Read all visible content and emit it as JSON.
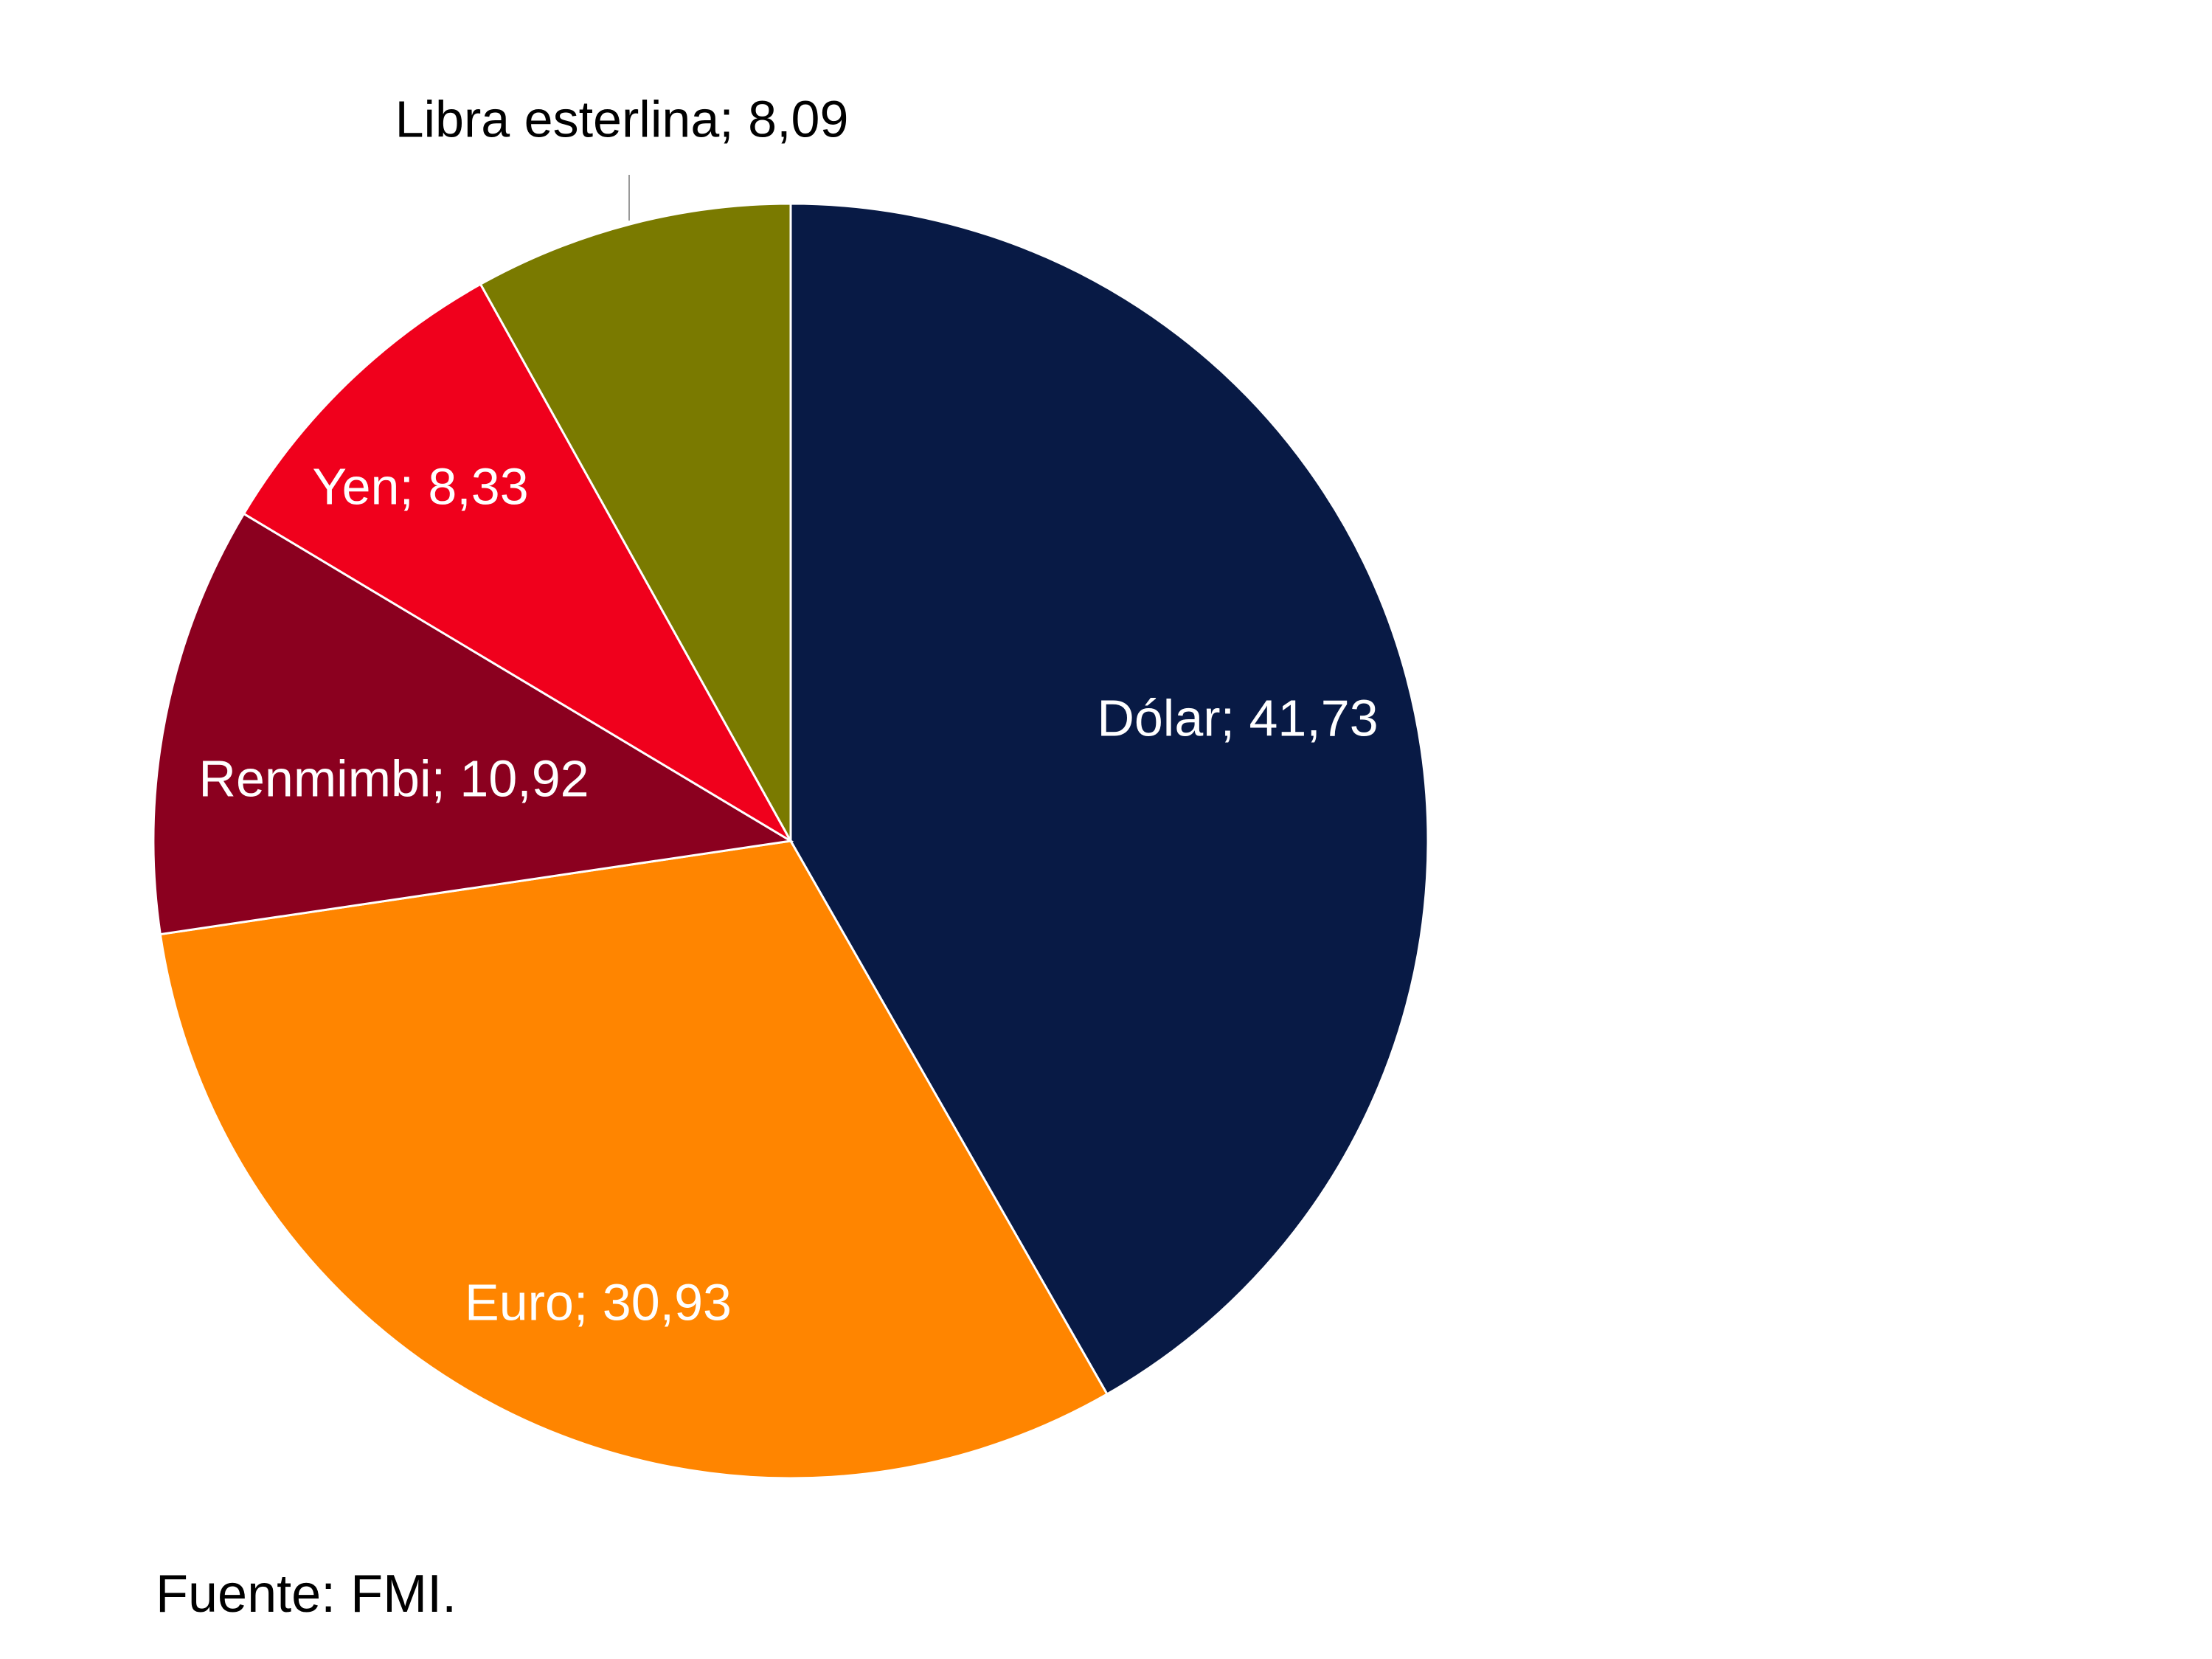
{
  "chart_data": {
    "type": "pie",
    "slices": [
      {
        "label": "Dólar",
        "value": 41.73,
        "display": "Dólar; 41,73",
        "color": "#081A45",
        "label_color": "#ffffff"
      },
      {
        "label": "Euro",
        "value": 30.93,
        "display": "Euro; 30,93",
        "color": "#FF8500",
        "label_color": "#ffffff"
      },
      {
        "label": "Renmimbi",
        "value": 10.92,
        "display": "Renmimbi; 10,92",
        "color": "#8B001F",
        "label_color": "#ffffff"
      },
      {
        "label": "Yen",
        "value": 8.33,
        "display": "Yen; 8,33",
        "color": "#F0001C",
        "label_color": "#ffffff"
      },
      {
        "label": "Libra esterlina",
        "value": 8.09,
        "display": "Libra esterlina; 8,09",
        "color": "#7A7A00",
        "label_color": "#000000"
      }
    ],
    "start_angle": "12 o'clock",
    "direction": "clockwise"
  },
  "source": "Fuente: FMI."
}
